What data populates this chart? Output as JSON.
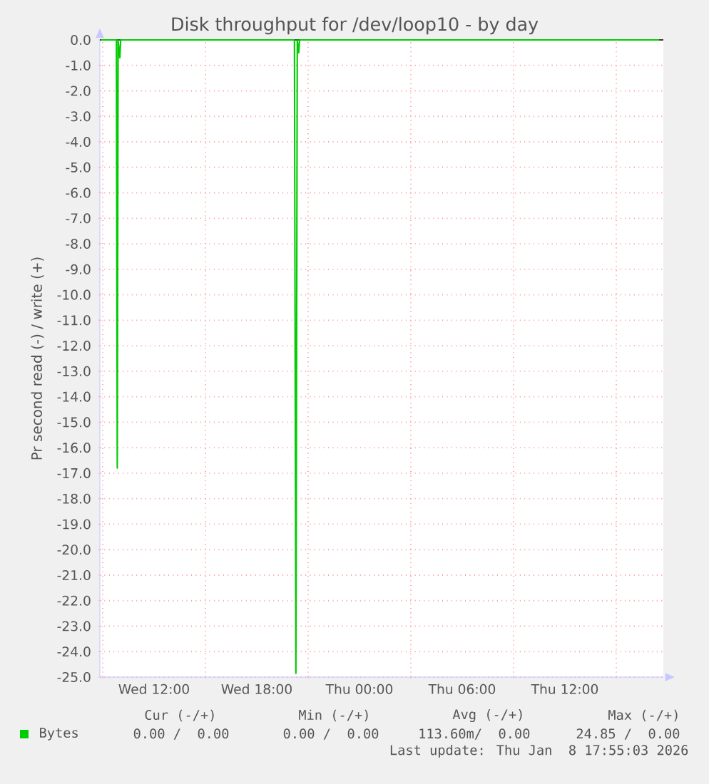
{
  "chart_data": {
    "type": "line",
    "title": "Disk throughput for /dev/loop10 - by day",
    "ylabel": "Pr second read (-) / write (+)",
    "x": [
      "2026-01-07T08:54",
      "2026-01-07T09:48",
      "2026-01-07T09:51",
      "2026-01-07T09:54",
      "2026-01-07T10:00",
      "2026-01-07T10:03",
      "2026-01-07T10:06",
      "2026-01-07T20:12",
      "2026-01-07T20:17",
      "2026-01-07T20:22",
      "2026-01-07T20:27",
      "2026-01-07T20:30",
      "2026-01-08T17:30"
    ],
    "series": [
      {
        "name": "Bytes",
        "color": "#00cc00",
        "values": [
          0,
          0,
          -16.8,
          0,
          -0.7,
          0,
          0,
          0,
          -24.85,
          0,
          -0.5,
          0,
          0
        ]
      }
    ],
    "xlim": [
      "2026-01-07T08:50",
      "2026-01-08T17:45"
    ],
    "ylim": [
      -25,
      0
    ],
    "xticks": [
      {
        "value": "2026-01-07T09:00",
        "label": null
      },
      {
        "value": "2026-01-07T12:00",
        "label": "Wed 12:00"
      },
      {
        "value": "2026-01-07T15:00",
        "label": null
      },
      {
        "value": "2026-01-07T18:00",
        "label": "Wed 18:00"
      },
      {
        "value": "2026-01-07T21:00",
        "label": null
      },
      {
        "value": "2026-01-08T00:00",
        "label": "Thu 00:00"
      },
      {
        "value": "2026-01-08T03:00",
        "label": null
      },
      {
        "value": "2026-01-08T06:00",
        "label": "Thu 06:00"
      },
      {
        "value": "2026-01-08T09:00",
        "label": null
      },
      {
        "value": "2026-01-08T12:00",
        "label": "Thu 12:00"
      },
      {
        "value": "2026-01-08T15:00",
        "label": null
      }
    ],
    "yticks": [
      {
        "value": 0,
        "label": "0.0"
      },
      {
        "value": -1,
        "label": "-1.0"
      },
      {
        "value": -2,
        "label": "-2.0"
      },
      {
        "value": -3,
        "label": "-3.0"
      },
      {
        "value": -4,
        "label": "-4.0"
      },
      {
        "value": -5,
        "label": "-5.0"
      },
      {
        "value": -6,
        "label": "-6.0"
      },
      {
        "value": -7,
        "label": "-7.0"
      },
      {
        "value": -8,
        "label": "-8.0"
      },
      {
        "value": -9,
        "label": "-9.0"
      },
      {
        "value": -10,
        "label": "-10.0"
      },
      {
        "value": -11,
        "label": "-11.0"
      },
      {
        "value": -12,
        "label": "-12.0"
      },
      {
        "value": -13,
        "label": "-13.0"
      },
      {
        "value": -14,
        "label": "-14.0"
      },
      {
        "value": -15,
        "label": "-15.0"
      },
      {
        "value": -16,
        "label": "-16.0"
      },
      {
        "value": -17,
        "label": "-17.0"
      },
      {
        "value": -18,
        "label": "-18.0"
      },
      {
        "value": -19,
        "label": "-19.0"
      },
      {
        "value": -20,
        "label": "-20.0"
      },
      {
        "value": -21,
        "label": "-21.0"
      },
      {
        "value": -22,
        "label": "-22.0"
      },
      {
        "value": -23,
        "label": "-23.0"
      },
      {
        "value": -24,
        "label": "-24.0"
      },
      {
        "value": -25,
        "label": "-25.0"
      }
    ],
    "grid": true,
    "legend": "bottom",
    "annotations": [
      "Cur (-/+)",
      "Min (-/+)",
      "Avg (-/+)",
      "Max (-/+)",
      "0.00 /  0.00",
      "0.00 /  0.00",
      "113.60m/  0.00",
      "24.85 /  0.00",
      "Last update: Thu Jan  8 17:55:03 2026"
    ]
  }
}
